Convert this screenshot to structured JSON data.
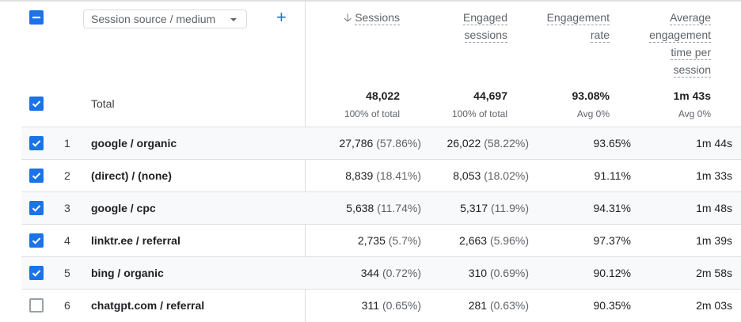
{
  "header": {
    "dimension_select": "Session source / medium",
    "columns": [
      {
        "label_lines": [
          "Sessions"
        ],
        "sorted": "descending"
      },
      {
        "label_lines": [
          "Engaged",
          "sessions"
        ]
      },
      {
        "label_lines": [
          "Engagement",
          "rate"
        ]
      },
      {
        "label_lines": [
          "Average",
          "engagement",
          "time per",
          "session"
        ]
      }
    ]
  },
  "totals": {
    "label": "Total",
    "values": [
      "48,022",
      "44,697",
      "93.08%",
      "1m 43s"
    ],
    "subs": [
      "100% of total",
      "100% of total",
      "Avg 0%",
      "Avg 0%"
    ]
  },
  "rows": [
    {
      "n": "1",
      "dim": "google / organic",
      "checked": true,
      "sessions": "27,786",
      "sessions_pct": "(57.86%)",
      "engaged": "26,022",
      "engaged_pct": "(58.22%)",
      "rate": "93.65%",
      "time": "1m 44s"
    },
    {
      "n": "2",
      "dim": "(direct) / (none)",
      "checked": true,
      "sessions": "8,839",
      "sessions_pct": "(18.41%)",
      "engaged": "8,053",
      "engaged_pct": "(18.02%)",
      "rate": "91.11%",
      "time": "1m 33s"
    },
    {
      "n": "3",
      "dim": "google / cpc",
      "checked": true,
      "sessions": "5,638",
      "sessions_pct": "(11.74%)",
      "engaged": "5,317",
      "engaged_pct": "(11.9%)",
      "rate": "94.31%",
      "time": "1m 48s"
    },
    {
      "n": "4",
      "dim": "linktr.ee / referral",
      "checked": true,
      "sessions": "2,735",
      "sessions_pct": "(5.7%)",
      "engaged": "2,663",
      "engaged_pct": "(5.96%)",
      "rate": "97.37%",
      "time": "1m 39s"
    },
    {
      "n": "5",
      "dim": "bing / organic",
      "checked": true,
      "sessions": "344",
      "sessions_pct": "(0.72%)",
      "engaged": "310",
      "engaged_pct": "(0.69%)",
      "rate": "90.12%",
      "time": "2m 58s"
    },
    {
      "n": "6",
      "dim": "chatgpt.com / referral",
      "checked": false,
      "sessions": "311",
      "sessions_pct": "(0.65%)",
      "engaged": "281",
      "engaged_pct": "(0.63%)",
      "rate": "90.35%",
      "time": "2m 03s"
    }
  ]
}
